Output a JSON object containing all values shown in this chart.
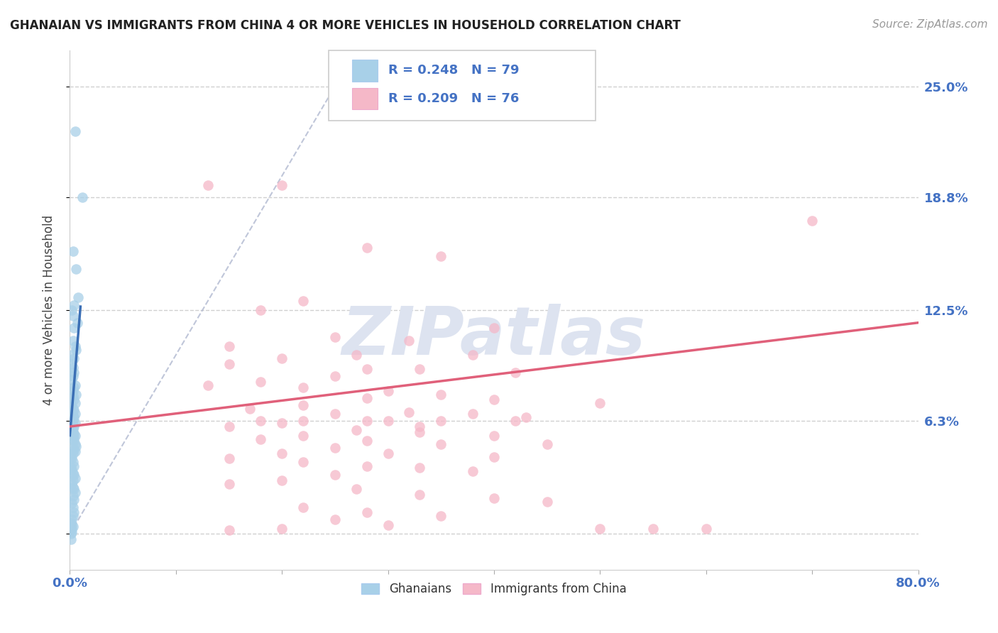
{
  "title": "GHANAIAN VS IMMIGRANTS FROM CHINA 4 OR MORE VEHICLES IN HOUSEHOLD CORRELATION CHART",
  "source": "Source: ZipAtlas.com",
  "ylabel": "4 or more Vehicles in Household",
  "xlim": [
    0.0,
    0.8
  ],
  "ylim": [
    -0.02,
    0.27
  ],
  "ytick_vals": [
    0.0,
    0.063,
    0.125,
    0.188,
    0.25
  ],
  "ytick_labels": [
    "",
    "6.3%",
    "12.5%",
    "18.8%",
    "25.0%"
  ],
  "xtick_vals": [
    0.0,
    0.1,
    0.2,
    0.3,
    0.4,
    0.5,
    0.6,
    0.7,
    0.8
  ],
  "xtick_labels": [
    "0.0%",
    "",
    "",
    "",
    "",
    "",
    "",
    "",
    "80.0%"
  ],
  "blue_R": 0.248,
  "blue_N": 79,
  "pink_R": 0.209,
  "pink_N": 76,
  "blue_color": "#A8D0E8",
  "pink_color": "#F5B8C8",
  "blue_line_color": "#3B6FB5",
  "pink_line_color": "#E0607A",
  "watermark": "ZIPatlas",
  "legend_label_blue": "Ghanaians",
  "legend_label_pink": "Immigrants from China",
  "blue_R_color": "#4472C4",
  "blue_N_color": "#4472C4",
  "label_color": "#4472C4",
  "blue_scatter_x": [
    0.005,
    0.012,
    0.003,
    0.006,
    0.008,
    0.004,
    0.002,
    0.003,
    0.007,
    0.004,
    0.003,
    0.005,
    0.006,
    0.002,
    0.004,
    0.001,
    0.003,
    0.004,
    0.003,
    0.002,
    0.005,
    0.004,
    0.003,
    0.006,
    0.003,
    0.004,
    0.005,
    0.002,
    0.003,
    0.004,
    0.005,
    0.003,
    0.004,
    0.003,
    0.005,
    0.004,
    0.003,
    0.002,
    0.003,
    0.004,
    0.005,
    0.004,
    0.003,
    0.004,
    0.005,
    0.006,
    0.003,
    0.004,
    0.005,
    0.003,
    0.001,
    0.002,
    0.003,
    0.004,
    0.001,
    0.002,
    0.003,
    0.004,
    0.005,
    0.003,
    0.002,
    0.003,
    0.004,
    0.005,
    0.003,
    0.004,
    0.002,
    0.003,
    0.004,
    0.003,
    0.002,
    0.001,
    0.002,
    0.003,
    0.002,
    0.001,
    0.002,
    0.001,
    0.001
  ],
  "blue_scatter_y": [
    0.225,
    0.188,
    0.158,
    0.148,
    0.132,
    0.128,
    0.125,
    0.122,
    0.118,
    0.115,
    0.108,
    0.105,
    0.103,
    0.1,
    0.098,
    0.095,
    0.093,
    0.09,
    0.088,
    0.086,
    0.083,
    0.082,
    0.08,
    0.078,
    0.077,
    0.075,
    0.073,
    0.072,
    0.07,
    0.069,
    0.067,
    0.066,
    0.065,
    0.063,
    0.062,
    0.06,
    0.059,
    0.058,
    0.057,
    0.056,
    0.055,
    0.054,
    0.053,
    0.052,
    0.05,
    0.049,
    0.048,
    0.047,
    0.046,
    0.045,
    0.043,
    0.042,
    0.04,
    0.038,
    0.037,
    0.036,
    0.034,
    0.033,
    0.031,
    0.03,
    0.028,
    0.026,
    0.025,
    0.023,
    0.021,
    0.019,
    0.017,
    0.015,
    0.012,
    0.01,
    0.008,
    0.006,
    0.005,
    0.004,
    0.003,
    0.002,
    0.001,
    0.0,
    -0.003
  ],
  "pink_scatter_x": [
    0.13,
    0.2,
    0.28,
    0.35,
    0.22,
    0.18,
    0.4,
    0.25,
    0.32,
    0.15,
    0.27,
    0.38,
    0.2,
    0.15,
    0.28,
    0.33,
    0.42,
    0.25,
    0.18,
    0.13,
    0.22,
    0.3,
    0.35,
    0.28,
    0.4,
    0.5,
    0.22,
    0.17,
    0.32,
    0.38,
    0.25,
    0.43,
    0.3,
    0.2,
    0.15,
    0.27,
    0.33,
    0.4,
    0.22,
    0.18,
    0.28,
    0.35,
    0.45,
    0.25,
    0.2,
    0.3,
    0.4,
    0.15,
    0.22,
    0.28,
    0.33,
    0.38,
    0.25,
    0.2,
    0.15,
    0.27,
    0.33,
    0.4,
    0.45,
    0.22,
    0.28,
    0.35,
    0.25,
    0.3,
    0.2,
    0.15,
    0.42,
    0.35,
    0.28,
    0.22,
    0.18,
    0.7,
    0.55,
    0.6,
    0.5,
    0.33
  ],
  "pink_scatter_y": [
    0.195,
    0.195,
    0.16,
    0.155,
    0.13,
    0.125,
    0.115,
    0.11,
    0.108,
    0.105,
    0.1,
    0.1,
    0.098,
    0.095,
    0.092,
    0.092,
    0.09,
    0.088,
    0.085,
    0.083,
    0.082,
    0.08,
    0.078,
    0.076,
    0.075,
    0.073,
    0.072,
    0.07,
    0.068,
    0.067,
    0.067,
    0.065,
    0.063,
    0.062,
    0.06,
    0.058,
    0.057,
    0.055,
    0.055,
    0.053,
    0.052,
    0.05,
    0.05,
    0.048,
    0.045,
    0.045,
    0.043,
    0.042,
    0.04,
    0.038,
    0.037,
    0.035,
    0.033,
    0.03,
    0.028,
    0.025,
    0.022,
    0.02,
    0.018,
    0.015,
    0.012,
    0.01,
    0.008,
    0.005,
    0.003,
    0.002,
    0.063,
    0.063,
    0.063,
    0.063,
    0.063,
    0.175,
    0.003,
    0.003,
    0.003,
    0.06
  ],
  "blue_line_x": [
    0.0,
    0.01
  ],
  "blue_line_y": [
    0.055,
    0.127
  ],
  "pink_line_x": [
    0.0,
    0.8
  ],
  "pink_line_y": [
    0.06,
    0.118
  ],
  "diag_line_x": [
    0.0,
    0.27
  ],
  "diag_line_y": [
    0.0,
    0.27
  ]
}
